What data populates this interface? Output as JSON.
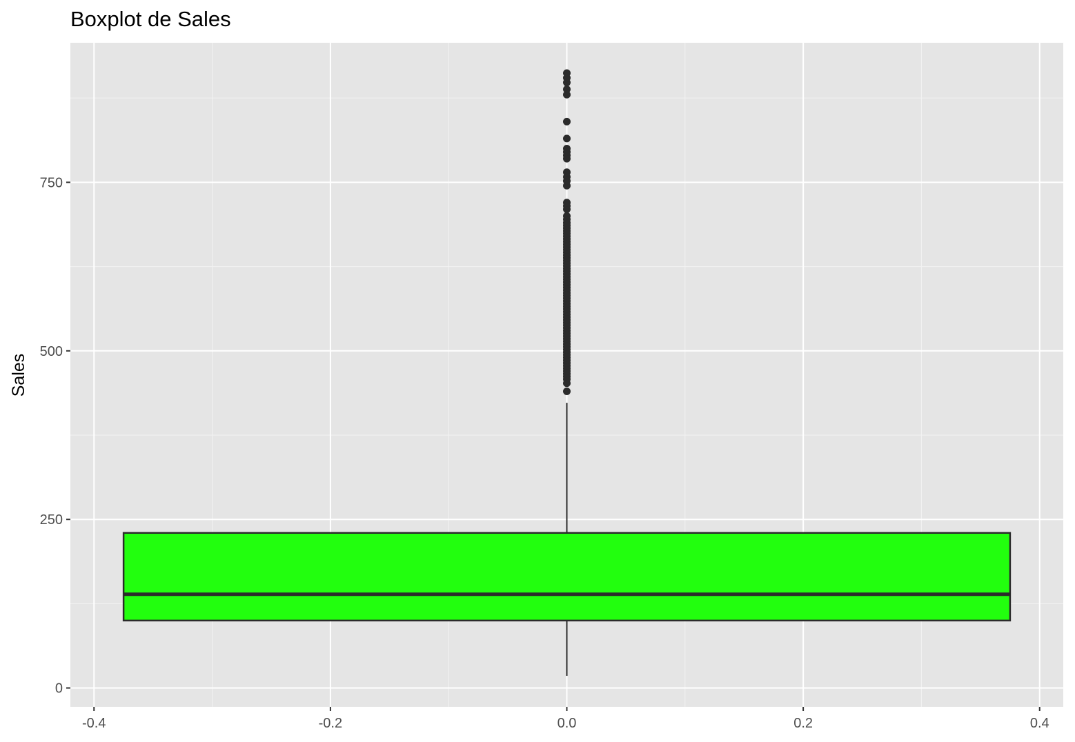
{
  "chart_data": {
    "type": "boxplot",
    "title": "Boxplot de Sales",
    "xlabel": "",
    "ylabel": "Sales",
    "xlim": [
      -0.42,
      0.42
    ],
    "ylim": [
      -28,
      957
    ],
    "x_ticks": [
      -0.4,
      -0.2,
      0.0,
      0.2,
      0.4
    ],
    "x_tick_labels": [
      "-0.4",
      "-0.2",
      "0.0",
      "0.2",
      "0.4"
    ],
    "y_ticks": [
      0,
      250,
      500,
      750
    ],
    "y_tick_labels": [
      "0",
      "250",
      "500",
      "750"
    ],
    "x_minor_ticks": [
      -0.3,
      -0.1,
      0.1,
      0.3
    ],
    "y_minor_ticks": [
      125,
      375,
      625,
      875
    ],
    "grid": true,
    "box": {
      "x_center": 0.0,
      "x_left": -0.375,
      "x_right": 0.375,
      "q1": 100,
      "median": 139,
      "q3": 230,
      "whisker_low": 18,
      "whisker_high": 423
    },
    "outliers": [
      440,
      452,
      458,
      462,
      466,
      470,
      474,
      478,
      482,
      486,
      490,
      494,
      498,
      502,
      506,
      510,
      514,
      518,
      522,
      526,
      530,
      534,
      538,
      542,
      546,
      550,
      554,
      558,
      562,
      566,
      570,
      574,
      578,
      582,
      586,
      590,
      594,
      598,
      602,
      606,
      610,
      614,
      618,
      622,
      626,
      630,
      634,
      638,
      642,
      646,
      650,
      654,
      658,
      662,
      666,
      670,
      674,
      678,
      682,
      686,
      690,
      695,
      700,
      710,
      715,
      720,
      745,
      752,
      758,
      765,
      785,
      790,
      795,
      800,
      815,
      840,
      880,
      888,
      898,
      905,
      912
    ]
  },
  "colors": {
    "panel_background": "#e5e5e5",
    "grid_major": "#ffffff",
    "grid_minor": "#f2f2f2",
    "box_fill": "#22ff0e",
    "box_outline": "#2b2b2b",
    "outlier": "#2b2b2b"
  }
}
